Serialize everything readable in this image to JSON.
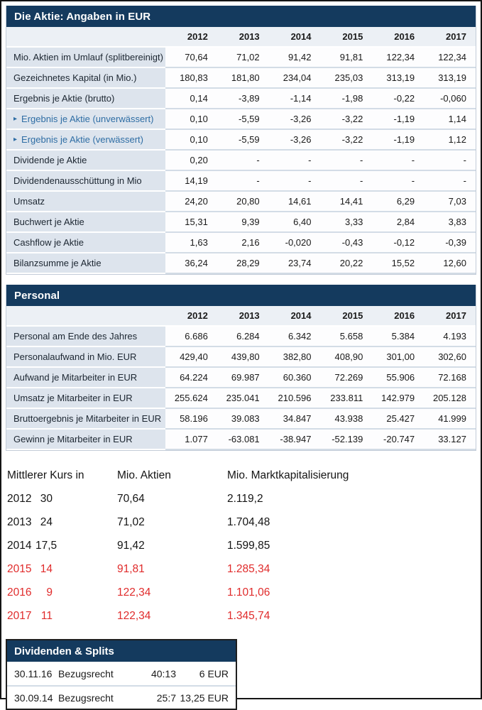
{
  "colors": {
    "header_navy": "#143a5e",
    "highlight_red": "#e02b2b",
    "subrow_blue": "#2e6da4",
    "label_cell_bg": "#dde4ed",
    "years_row_bg": "#ecf0f5"
  },
  "icons": {
    "sub_marker": "▸"
  },
  "aktie": {
    "title": "Die Aktie: Angaben in EUR",
    "years": [
      "2012",
      "2013",
      "2014",
      "2015",
      "2016",
      "2017"
    ],
    "rows": [
      {
        "label": "Mio. Aktien im Umlauf (splitbereinigt)",
        "values": [
          "70,64",
          "71,02",
          "91,42",
          "91,81",
          "122,34",
          "122,34"
        ]
      },
      {
        "label": "Gezeichnetes Kapital (in Mio.)",
        "values": [
          "180,83",
          "181,80",
          "234,04",
          "235,03",
          "313,19",
          "313,19"
        ]
      },
      {
        "label": "Ergebnis je Aktie (brutto)",
        "values": [
          "0,14",
          "-3,89",
          "-1,14",
          "-1,98",
          "-0,22",
          "-0,060"
        ]
      },
      {
        "label": "Ergebnis je Aktie (unverwässert)",
        "sub": true,
        "values": [
          "0,10",
          "-5,59",
          "-3,26",
          "-3,22",
          "-1,19",
          "1,14"
        ]
      },
      {
        "label": "Ergebnis je Aktie (verwässert)",
        "sub": true,
        "values": [
          "0,10",
          "-5,59",
          "-3,26",
          "-3,22",
          "-1,19",
          "1,12"
        ]
      },
      {
        "label": "Dividende je Aktie",
        "values": [
          "0,20",
          "-",
          "-",
          "-",
          "-",
          "-"
        ]
      },
      {
        "label": "Dividendenausschüttung in Mio",
        "values": [
          "14,19",
          "-",
          "-",
          "-",
          "-",
          "-"
        ]
      },
      {
        "label": "Umsatz",
        "values": [
          "24,20",
          "20,80",
          "14,61",
          "14,41",
          "6,29",
          "7,03"
        ]
      },
      {
        "label": "Buchwert je Aktie",
        "values": [
          "15,31",
          "9,39",
          "6,40",
          "3,33",
          "2,84",
          "3,83"
        ]
      },
      {
        "label": "Cashflow je Aktie",
        "values": [
          "1,63",
          "2,16",
          "-0,020",
          "-0,43",
          "-0,12",
          "-0,39"
        ]
      },
      {
        "label": "Bilanzsumme je Aktie",
        "values": [
          "36,24",
          "28,29",
          "23,74",
          "20,22",
          "15,52",
          "12,60"
        ]
      }
    ]
  },
  "personal": {
    "title": "Personal",
    "years": [
      "2012",
      "2013",
      "2014",
      "2015",
      "2016",
      "2017"
    ],
    "rows": [
      {
        "label": "Personal am Ende des Jahres",
        "values": [
          "6.686",
          "6.284",
          "6.342",
          "5.658",
          "5.384",
          "4.193"
        ]
      },
      {
        "label": "Personalaufwand in Mio. EUR",
        "values": [
          "429,40",
          "439,80",
          "382,80",
          "408,90",
          "301,00",
          "302,60"
        ]
      },
      {
        "label": "Aufwand je Mitarbeiter in EUR",
        "values": [
          "64.224",
          "69.987",
          "60.360",
          "72.269",
          "55.906",
          "72.168"
        ]
      },
      {
        "label": "Umsatz je Mitarbeiter in EUR",
        "values": [
          "255.624",
          "235.041",
          "210.596",
          "233.811",
          "142.979",
          "205.128"
        ]
      },
      {
        "label": "Bruttoergebnis je Mitarbeiter in EUR",
        "values": [
          "58.196",
          "39.083",
          "34.847",
          "43.938",
          "25.427",
          "41.999"
        ]
      },
      {
        "label": "Gewinn je Mitarbeiter in EUR",
        "values": [
          "1.077",
          "-63.081",
          "-38.947",
          "-52.139",
          "-20.747",
          "33.127"
        ]
      }
    ]
  },
  "kurs": {
    "headers": {
      "kurs": "Mittlerer Kurs in",
      "aktien": "Mio. Aktien",
      "marktkap": "Mio. Marktkapitalisierung"
    },
    "rows": [
      {
        "year": "2012",
        "kurs": "30",
        "aktien": "70,64",
        "marktkap": "2.119,2",
        "highlight": false
      },
      {
        "year": "2013",
        "kurs": "24",
        "aktien": "71,02",
        "marktkap": "1.704,48",
        "highlight": false
      },
      {
        "year": "2014",
        "kurs": "17,5",
        "aktien": "91,42",
        "marktkap": "1.599,85",
        "highlight": false
      },
      {
        "year": "2015",
        "kurs": "14",
        "aktien": "91,81",
        "marktkap": "1.285,34",
        "highlight": true
      },
      {
        "year": "2016",
        "kurs": "9",
        "aktien": "122,34",
        "marktkap": "1.101,06",
        "highlight": true
      },
      {
        "year": "2017",
        "kurs": "11",
        "aktien": "122,34",
        "marktkap": "1.345,74",
        "highlight": true
      }
    ]
  },
  "dividenden": {
    "title": "Dividenden & Splits",
    "rows": [
      {
        "date": "30.11.16",
        "type": "Bezugsrecht",
        "ratio": "40:13",
        "amount": "6 EUR"
      },
      {
        "date": "30.09.14",
        "type": "Bezugsrecht",
        "ratio": "25:7",
        "amount": "13,25 EUR"
      }
    ]
  }
}
